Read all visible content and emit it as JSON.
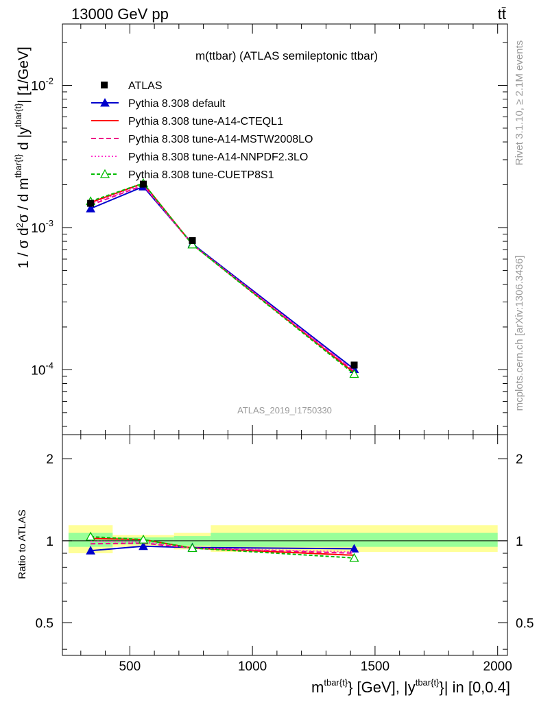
{
  "header": {
    "energy": "13000 GeV pp",
    "process": "tt̄",
    "title": "m(ttbar) (ATLAS semileptonic ttbar)",
    "watermark": "ATLAS_2019_I1750330",
    "rivet": "Rivet 3.1.10, ≥ 2.1M events",
    "source": "mcplots.cern.ch [arXiv:1306.3436]"
  },
  "axes": {
    "main_ylabel": "1 / σ d²σ / d m^{tbar{t}} d |y^{tbar{t}}| [1/GeV]",
    "ratio_ylabel": "Ratio to ATLAS",
    "xlabel": "m^{tbar{t}} [GeV], |y^{tbar{t}}| in [0,0.4]",
    "main_ytick_labels": [
      "10^-4",
      "10^-3",
      "10^-2"
    ],
    "ratio_ytick_labels": [
      "0.5",
      "1",
      "2"
    ],
    "xtick_labels": [
      "500",
      "1000",
      "1500",
      "2000"
    ]
  },
  "chart_data": {
    "type": "line",
    "xlim": [
      225,
      2040
    ],
    "main": {
      "yscale": "log",
      "ylim": [
        3.5e-05,
        0.027
      ],
      "x": [
        340,
        555,
        755,
        1415
      ],
      "data": {
        "name": "ATLAS",
        "values": [
          0.00148,
          0.00202,
          0.00081,
          0.000108
        ]
      },
      "series": [
        {
          "name": "Pythia 8.308 default",
          "color": "#0000cc",
          "dash": "",
          "marker": "triangle",
          "values": [
            0.00136,
            0.00194,
            0.00077,
            0.000101
          ]
        },
        {
          "name": "Pythia 8.308 tune-A14-CTEQL1",
          "color": "#ff0000",
          "dash": "",
          "marker": "none",
          "values": [
            0.0015,
            0.00205,
            0.00076,
            9.55e-05
          ]
        },
        {
          "name": "Pythia 8.308 tune-A14-MSTW2008LO",
          "color": "#ee0088",
          "dash": "7,4",
          "marker": "none",
          "values": [
            0.00144,
            0.00198,
            0.00076,
            9.75e-05
          ]
        },
        {
          "name": "Pythia 8.308 tune-A14-NNPDF2.3LO",
          "color": "#ff33cc",
          "dash": "2,3",
          "marker": "none",
          "values": [
            0.00147,
            0.002,
            0.00076,
            9.85e-05
          ]
        },
        {
          "name": "Pythia 8.308 tune-CUETP8S1",
          "color": "#00bb00",
          "dash": "5,3",
          "marker": "open-triangle",
          "values": [
            0.00153,
            0.00205,
            0.00076,
            9.35e-05
          ]
        }
      ]
    },
    "ratio": {
      "yscale": "log",
      "ylim": [
        0.38,
        2.45
      ],
      "bins": [
        [
          250,
          430
        ],
        [
          430,
          680
        ],
        [
          680,
          830
        ],
        [
          830,
          2000
        ]
      ],
      "band_outer": [
        [
          0.9,
          1.14
        ],
        [
          0.95,
          1.05
        ],
        [
          0.93,
          1.07
        ],
        [
          0.91,
          1.14
        ]
      ],
      "band_inner": [
        [
          0.95,
          1.07
        ],
        [
          0.97,
          1.03
        ],
        [
          0.96,
          1.04
        ],
        [
          0.95,
          1.07
        ]
      ],
      "series": [
        {
          "name": "Pythia 8.308 default",
          "values": [
            0.92,
            0.955,
            0.945,
            0.935
          ]
        },
        {
          "name": "Pythia 8.308 tune-A14-CTEQL1",
          "values": [
            1.02,
            1.01,
            0.94,
            0.885
          ]
        },
        {
          "name": "Pythia 8.308 tune-A14-MSTW2008LO",
          "values": [
            0.975,
            0.98,
            0.94,
            0.9
          ]
        },
        {
          "name": "Pythia 8.308 tune-A14-NNPDF2.3LO",
          "values": [
            0.995,
            0.99,
            0.94,
            0.91
          ]
        },
        {
          "name": "Pythia 8.308 tune-CUETP8S1",
          "values": [
            1.035,
            1.01,
            0.94,
            0.865
          ]
        }
      ]
    }
  }
}
